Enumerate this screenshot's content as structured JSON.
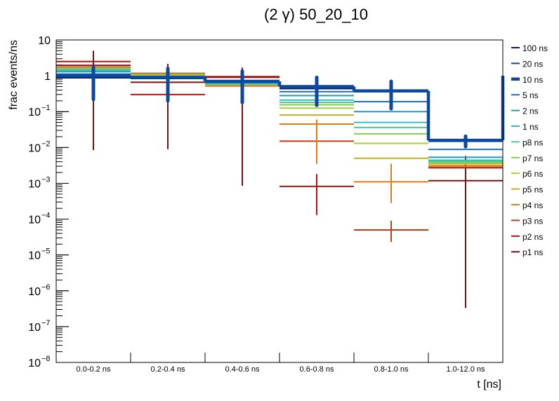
{
  "chart_data": {
    "type": "histogram-step",
    "title": "(2 γ) 50_20_10",
    "xlabel": "t [ns]",
    "ylabel": "frac events/ns",
    "yscale": "log",
    "ylim": [
      1e-08,
      10
    ],
    "y_tick_labels": [
      {
        "value": 10,
        "label": "10"
      },
      {
        "value": 1,
        "label": "1"
      },
      {
        "value": 0.1,
        "base": "10",
        "exp": "−1"
      },
      {
        "value": 0.01,
        "base": "10",
        "exp": "−2"
      },
      {
        "value": 0.001,
        "base": "10",
        "exp": "−3"
      },
      {
        "value": 0.0001,
        "base": "10",
        "exp": "−4"
      },
      {
        "value": 1e-05,
        "base": "10",
        "exp": "−5"
      },
      {
        "value": 1e-06,
        "base": "10",
        "exp": "−6"
      },
      {
        "value": 1e-07,
        "base": "10",
        "exp": "−7"
      },
      {
        "value": 1e-08,
        "base": "10",
        "exp": "−8"
      }
    ],
    "categories": [
      "0.0-0.2 ns",
      "0.2-0.4 ns",
      "0.4-0.6 ns",
      "0.6-0.8 ns",
      "0.8-1.0 ns",
      "1.0-12.0 ns"
    ],
    "series": [
      {
        "name": "100 ns",
        "color": "#0d1a5c",
        "values": [
          0.88,
          0.84,
          0.68,
          0.44,
          0.36,
          0.0155
        ]
      },
      {
        "name": "20 ns",
        "color": "#1e3e9e",
        "values": [
          0.95,
          0.86,
          0.69,
          0.46,
          0.37,
          0.0148
        ]
      },
      {
        "name": "10 ns",
        "color": "#0d48a0",
        "highlight": true,
        "values": [
          1.0,
          0.9,
          0.7,
          0.5,
          0.38,
          0.0158
        ],
        "err_low": [
          0.22,
          0.2,
          0.18,
          0.15,
          0.12,
          0.0105
        ],
        "err_high": [
          1.75,
          1.6,
          1.35,
          0.9,
          0.7,
          0.0205
        ]
      },
      {
        "name": "5 ns",
        "color": "#1a6fb2",
        "values": [
          1.12,
          0.9,
          0.67,
          0.36,
          0.19,
          0.0088
        ]
      },
      {
        "name": "2 ns",
        "color": "#2498bd",
        "values": [
          1.3,
          0.93,
          0.64,
          0.28,
          0.1,
          0.0053
        ]
      },
      {
        "name": "1 ns",
        "color": "#33c0c0",
        "values": [
          1.42,
          0.97,
          0.61,
          0.21,
          0.05,
          0.0044
        ]
      },
      {
        "name": "p8 ns",
        "color": "#4ec98e",
        "values": [
          1.48,
          0.99,
          0.6,
          0.18,
          0.036,
          0.0041
        ]
      },
      {
        "name": "p7 ns",
        "color": "#7ece55",
        "values": [
          1.53,
          1.01,
          0.59,
          0.155,
          0.024,
          0.0039
        ]
      },
      {
        "name": "p6 ns",
        "color": "#a9cf33",
        "values": [
          1.58,
          1.04,
          0.58,
          0.125,
          0.013,
          0.0037
        ]
      },
      {
        "name": "p5 ns",
        "color": "#c9ad22",
        "values": [
          1.62,
          1.08,
          0.56,
          0.08,
          0.005,
          0.0035
        ]
      },
      {
        "name": "p4 ns",
        "color": "#e07c17",
        "values": [
          1.7,
          1.13,
          0.53,
          0.045,
          0.0011,
          0.0031
        ],
        "err_low": [
          null,
          null,
          null,
          0.0035,
          0.00028,
          null
        ],
        "err_high": [
          null,
          null,
          null,
          0.06,
          0.0035,
          null
        ]
      },
      {
        "name": "p3 ns",
        "color": "#c83b12",
        "values": [
          1.74,
          1.17,
          0.52,
          0.015,
          5e-05,
          0.0028
        ],
        "err_low": [
          null,
          null,
          null,
          null,
          2.3e-05,
          null
        ],
        "err_high": [
          null,
          null,
          null,
          null,
          9e-05,
          null
        ]
      },
      {
        "name": "p2 ns",
        "color": "#a8170a",
        "values": [
          2.5,
          0.3,
          0.95,
          0.00082,
          null,
          0.0027
        ],
        "err_low": [
          null,
          null,
          null,
          0.00013,
          null,
          null
        ],
        "err_high": [
          null,
          null,
          null,
          0.0018,
          null,
          null
        ]
      },
      {
        "name": "p1 ns",
        "color": "#7a0f0f",
        "values": [
          1.95,
          0.66,
          0.91,
          null,
          null,
          0.00118
        ],
        "err_low": [
          0.0085,
          0.009,
          0.00085,
          null,
          null,
          3.3e-07
        ],
        "err_high": [
          5.0,
          2.15,
          1.7,
          null,
          null,
          0.0058
        ]
      }
    ],
    "legend_position": "right",
    "grid": false
  }
}
